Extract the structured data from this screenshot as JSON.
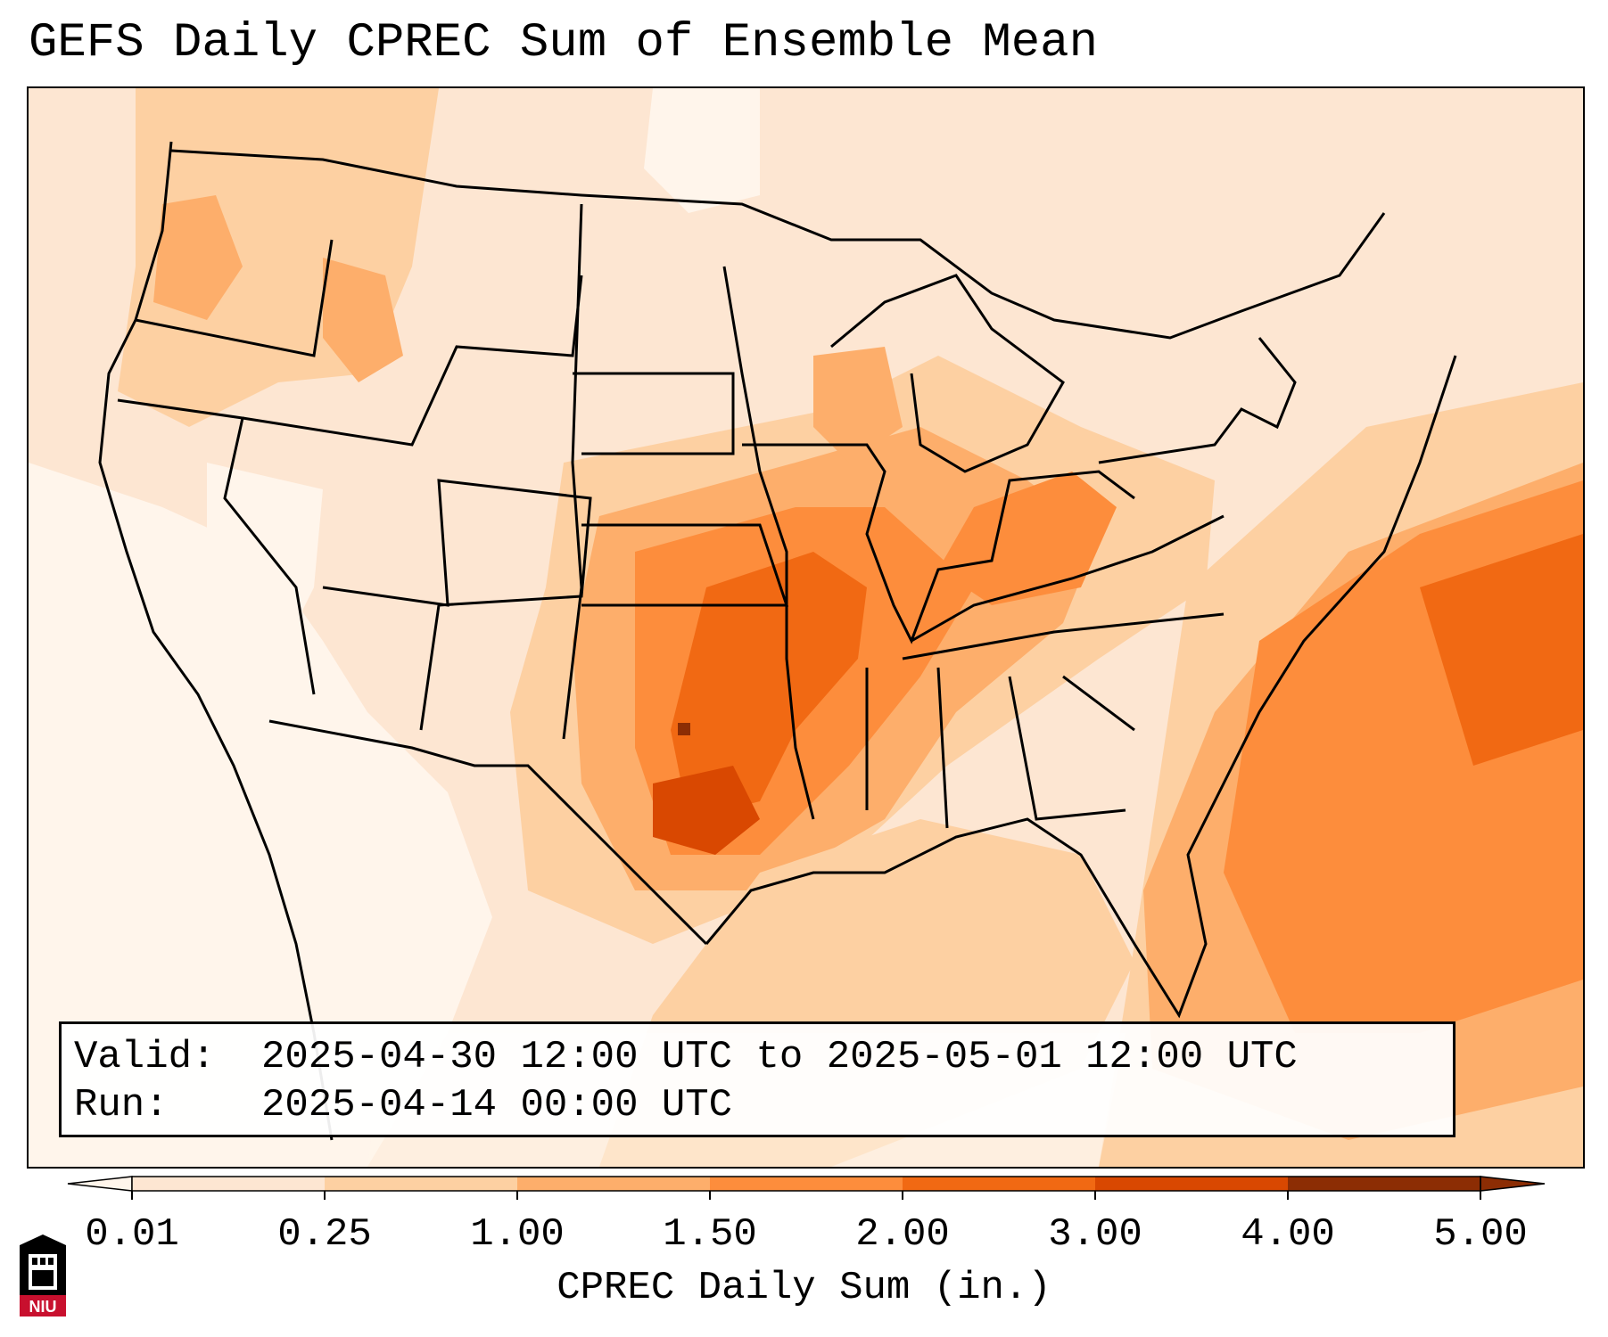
{
  "title": "GEFS Daily CPREC Sum of Ensemble Mean",
  "info": {
    "valid_label": "Valid:",
    "valid_value": "2025-04-30 12:00 UTC to 2025-05-01 12:00 UTC",
    "run_label": "Run:",
    "run_value": "2025-04-14 00:00 UTC"
  },
  "colorbar": {
    "title": "CPREC Daily Sum (in.)",
    "tick_labels": [
      "0.01",
      "0.25",
      "1.00",
      "1.50",
      "2.00",
      "3.00",
      "4.00",
      "5.00"
    ],
    "colors": [
      "#fff5eb",
      "#fde6d2",
      "#fdd0a2",
      "#fdae6b",
      "#fd8d3c",
      "#f16913",
      "#d94801",
      "#8c2d04"
    ],
    "extend": "both"
  },
  "logo": {
    "text": "NIU",
    "colors": [
      "#c8102e",
      "#000000"
    ]
  },
  "map": {
    "projection": "Lambert Conformal (CONUS)",
    "fill_colors": {
      "background": "#fde6d2",
      "light": "#fff5eb",
      "low": "#fdd0a2",
      "mid": "#fdae6b",
      "high": "#fd8d3c",
      "higher": "#f16913",
      "peak": "#d94801",
      "max": "#8c2d04"
    }
  }
}
